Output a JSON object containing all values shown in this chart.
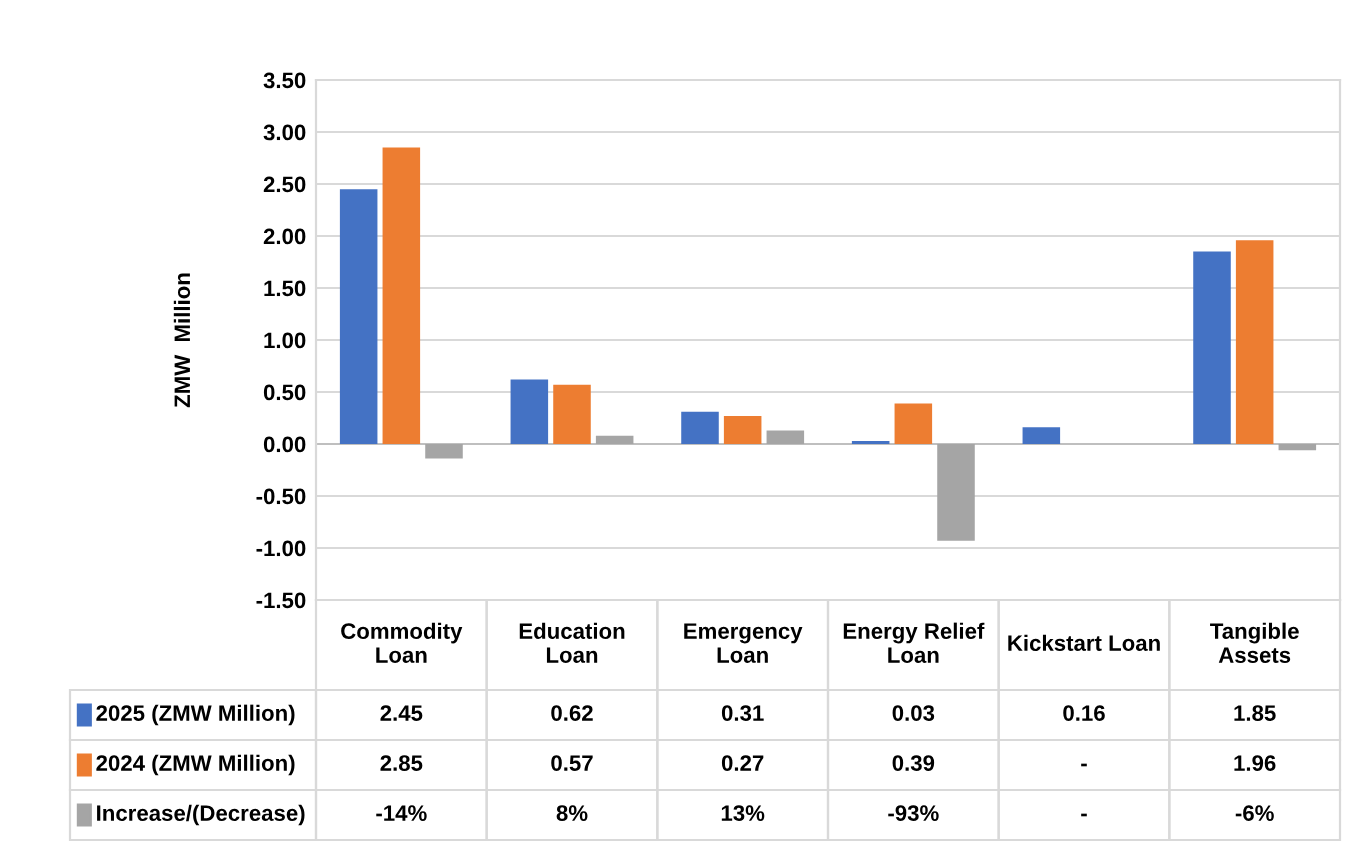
{
  "chart_data": {
    "type": "bar",
    "categories": [
      "Commodity\nLoan",
      "Education\nLoan",
      "Emergency\nLoan",
      "Energy Relief\nLoan",
      "Kickstart Loan",
      "Tangible\nAssets"
    ],
    "ylabel": "ZMW  Million",
    "series": [
      {
        "name": "2025 (ZMW Million)",
        "color": "#4472c4",
        "values": [
          2.45,
          0.62,
          0.31,
          0.03,
          0.16,
          1.85
        ],
        "value_labels": [
          "2.45",
          "0.62",
          "0.31",
          "0.03",
          "0.16",
          "1.85"
        ]
      },
      {
        "name": "2024 (ZMW Million)",
        "color": "#ed7d31",
        "values": [
          2.85,
          0.57,
          0.27,
          0.39,
          null,
          1.96
        ],
        "value_labels": [
          "2.85",
          "0.57",
          "0.27",
          "0.39",
          "-",
          "1.96"
        ]
      },
      {
        "name": "Increase/(Decrease)",
        "color": "#a5a5a5",
        "values": [
          -0.14,
          0.08,
          0.13,
          -0.93,
          null,
          -0.06
        ],
        "value_labels": [
          "-14%",
          "8%",
          "13%",
          "-93%",
          "-",
          "-6%"
        ]
      }
    ],
    "ylim": [
      -1.5,
      3.5
    ],
    "yticks": [
      {
        "value": -1.5,
        "label": "-1.50"
      },
      {
        "value": -1.0,
        "label": "-1.00"
      },
      {
        "value": -0.5,
        "label": "-0.50"
      },
      {
        "value": 0,
        "label": "0.00"
      },
      {
        "value": 0.5,
        "label": "0.50"
      },
      {
        "value": 1.0,
        "label": "1.00"
      },
      {
        "value": 1.5,
        "label": "1.50"
      },
      {
        "value": 2.0,
        "label": "2.00"
      },
      {
        "value": 2.5,
        "label": "2.50"
      },
      {
        "value": 3.0,
        "label": "3.00"
      },
      {
        "value": 3.5,
        "label": "3.50"
      }
    ],
    "grid": "y",
    "legend": "bottom"
  }
}
